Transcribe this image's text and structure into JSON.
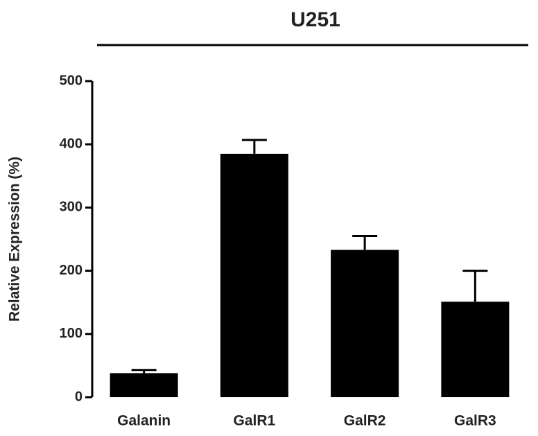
{
  "chart_data": {
    "type": "bar",
    "title": "U251",
    "y_label": "Relative Expression (%)",
    "categories": [
      "Galanin",
      "GalR1",
      "GalR2",
      "GalR3"
    ],
    "values": [
      38,
      385,
      233,
      151
    ],
    "errors": [
      5,
      22,
      22,
      49
    ],
    "color": "#000000",
    "ylim": [
      0,
      500
    ],
    "yticks": [
      0,
      100,
      200,
      300,
      400,
      500
    ],
    "grid": false
  }
}
